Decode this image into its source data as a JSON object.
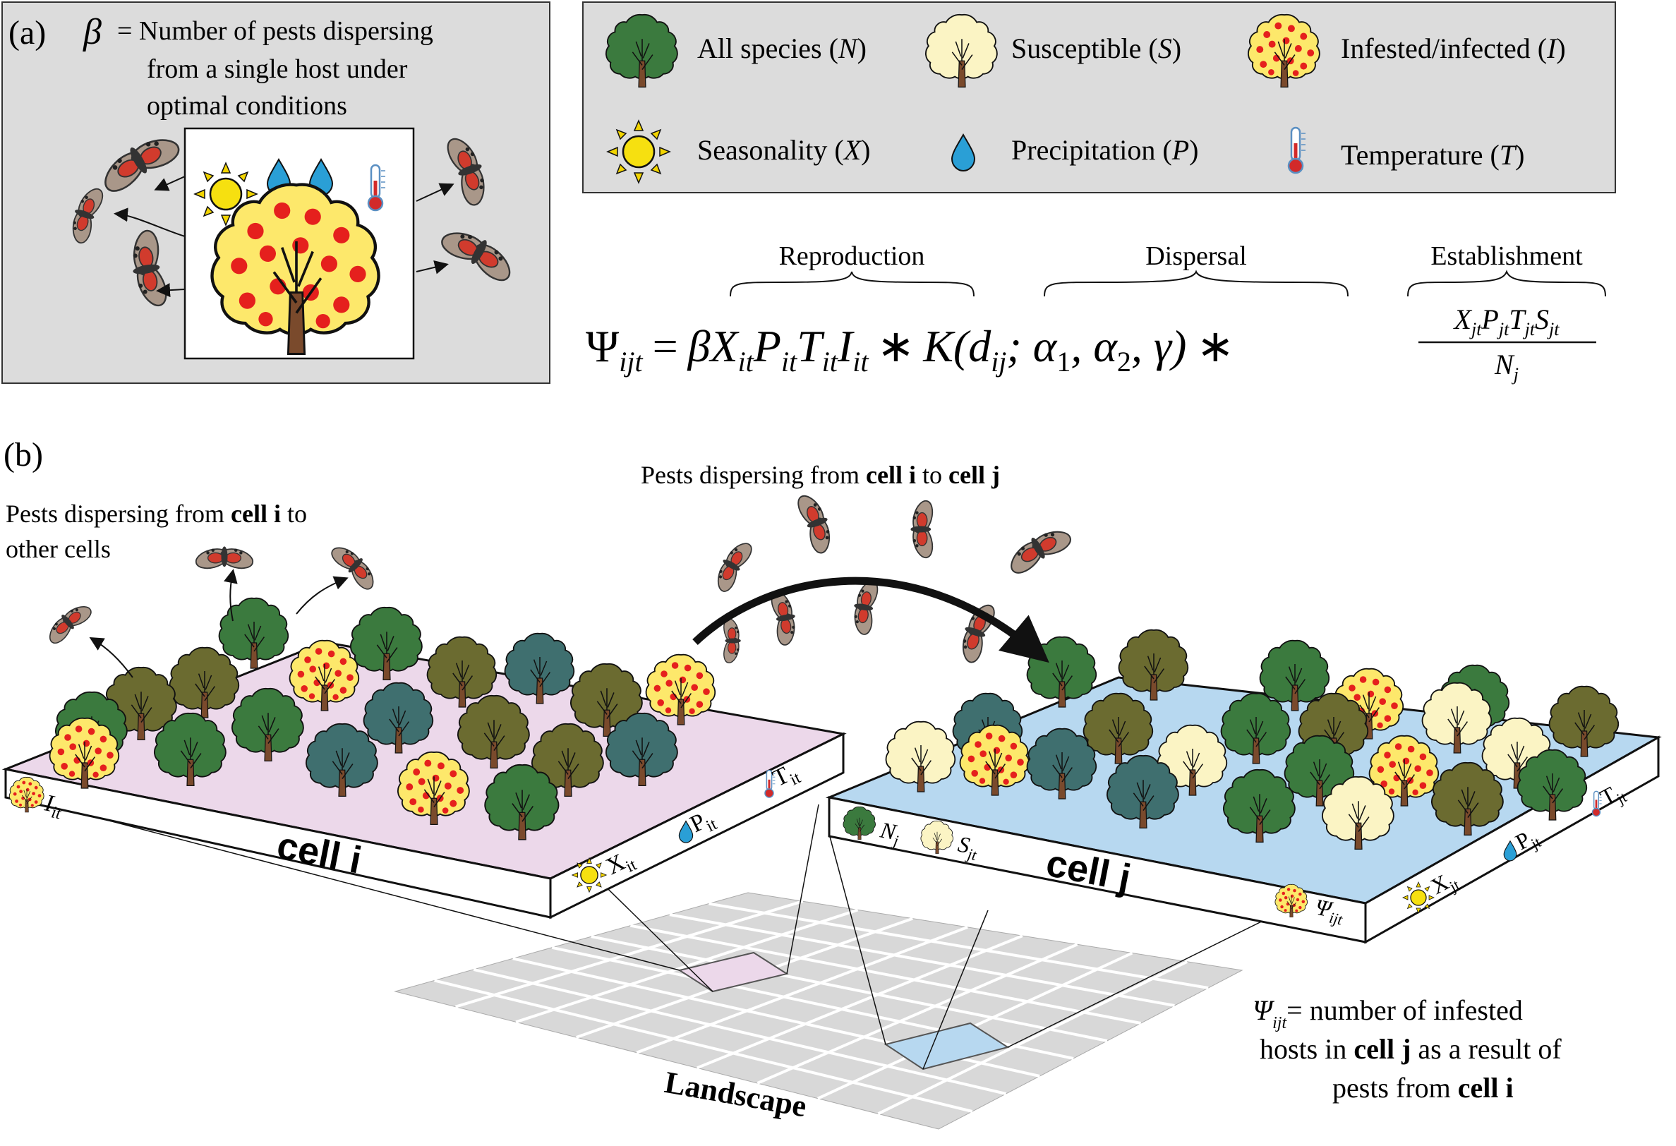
{
  "panel_a": {
    "label": "(a)",
    "beta_symbol": "β",
    "beta_desc_line1": "= Number of pests dispersing",
    "beta_desc_line2": "from a single host under",
    "beta_desc_line3": "optimal conditions"
  },
  "legend": {
    "items": [
      {
        "label": "All species (",
        "var": "N",
        "close": ")",
        "icon": "tree-icon"
      },
      {
        "label": "Susceptible (",
        "var": "S",
        "close": ")",
        "icon": "susceptible-tree-icon"
      },
      {
        "label": "Infested/infected (",
        "var": "I",
        "close": ")",
        "icon": "infested-tree-icon"
      },
      {
        "label": "Seasonality (",
        "var": "X",
        "close": ")",
        "icon": "sun-icon"
      },
      {
        "label": "Precipitation (",
        "var": "P",
        "close": ")",
        "icon": "water-drop-icon"
      },
      {
        "label": "Temperature (",
        "var": "T",
        "close": ")",
        "icon": "thermometer-icon"
      }
    ]
  },
  "equation": {
    "reproduction": "Reproduction",
    "dispersal": "Dispersal",
    "establishment": "Establishment",
    "lhs": "Ψ",
    "lhs_sub": "ijt",
    "equals": "=",
    "beta": "β",
    "repro_term": "X",
    "repro_sub": "it",
    "repro_p": "P",
    "repro_t": "T",
    "repro_i": "I",
    "star": "∗",
    "kernel": "K(d",
    "kernel_sub": "ij",
    "kernel_args": "; α",
    "alpha1_sub": "1",
    "alpha2": ", α",
    "alpha2_sub": "2",
    "gamma": ", γ)",
    "num_x": "X",
    "num_p": "P",
    "num_t": "T",
    "num_s": "S",
    "sub_jt": "jt",
    "den_n": "N",
    "den_sub": "j"
  },
  "panel_b": {
    "label": "(b)",
    "left_text_1": "Pests dispersing from ",
    "left_text_bold": "cell i",
    "left_text_2": " to",
    "left_text_3": "other cells",
    "top_text_1": "Pests dispersing from ",
    "top_text_bold1": "cell i",
    "top_text_2": " to ",
    "top_text_bold2": "cell j",
    "cell_i": "cell i",
    "cell_j": "cell j",
    "landscape": "Landscape",
    "cell_i_labels": {
      "I": "I",
      "I_sub": "it",
      "X": "X",
      "X_sub": "it",
      "P": "P",
      "P_sub": "it",
      "T": "T",
      "T_sub": "it"
    },
    "cell_j_labels": {
      "N": "N",
      "N_sub": "j",
      "S": "S",
      "S_sub": "jt",
      "psi": "Ψ",
      "psi_sub": "ijt",
      "X": "X",
      "X_sub": "jt",
      "P": "P",
      "P_sub": "jt",
      "T": "T",
      "T_sub": "jt"
    },
    "psi_def_symbol": "Ψ",
    "psi_def_sub": "ijt",
    "psi_def_1": "= number of infested",
    "psi_def_2_a": "hosts in ",
    "psi_def_2_bold": "cell j",
    "psi_def_2_b": " as a result of",
    "psi_def_3_a": "pests from ",
    "psi_def_3_bold": "cell i"
  },
  "colors": {
    "panel_bg": "#dcdcdc",
    "cell_i_top": "#ecd8ea",
    "cell_j_top": "#b7d8f0",
    "tree_green": "#3b7a3e",
    "tree_olive": "#6b6b30",
    "tree_teal": "#3f6f6f",
    "tree_pale": "#fbf4c4",
    "infest_red": "#e5201d",
    "infest_yellow": "#fde86b",
    "trunk": "#7a4a2c",
    "sun": "#f6e010",
    "drop": "#2a9fd6",
    "thermo": "#d22a2a",
    "grid": "#cfcfcf"
  }
}
